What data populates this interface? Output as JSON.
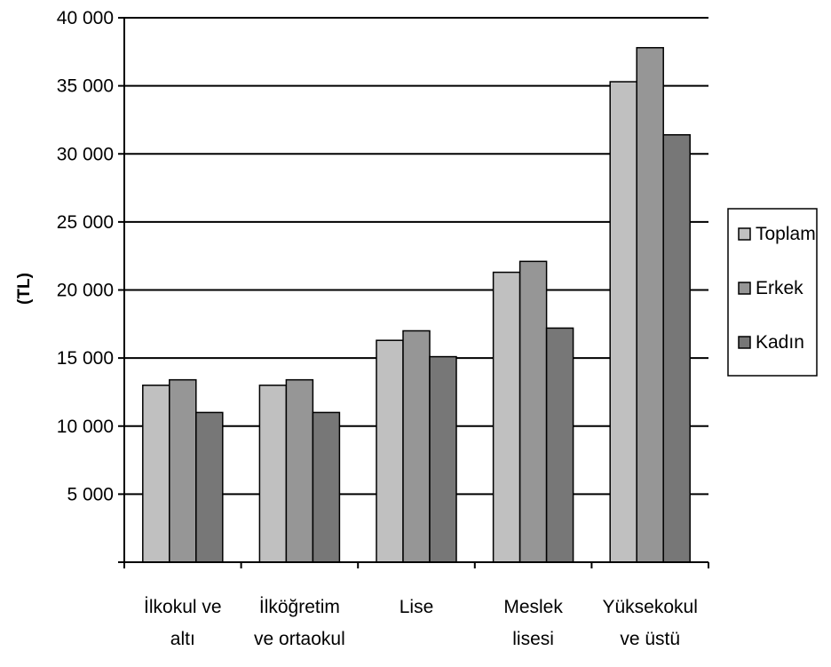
{
  "chart_data": {
    "type": "bar",
    "title": "",
    "xlabel": "",
    "ylabel": "(TL)",
    "ylim": [
      0,
      40000
    ],
    "y_ticks": [
      {
        "value": 0,
        "label": ""
      },
      {
        "value": 5000,
        "label": "5 000"
      },
      {
        "value": 10000,
        "label": "10 000"
      },
      {
        "value": 15000,
        "label": "15 000"
      },
      {
        "value": 20000,
        "label": "20 000"
      },
      {
        "value": 25000,
        "label": "25 000"
      },
      {
        "value": 30000,
        "label": "30 000"
      },
      {
        "value": 35000,
        "label": "35 000"
      },
      {
        "value": 40000,
        "label": "40 000"
      }
    ],
    "categories": [
      [
        "İlkokul ve",
        "altı"
      ],
      [
        "İlköğretim",
        "ve ortaokul"
      ],
      [
        "Lise"
      ],
      [
        "Meslek",
        "lisesi"
      ],
      [
        "Yüksekokul",
        "ve üstü"
      ]
    ],
    "series": [
      {
        "name": "Toplam",
        "color": "#c0c0c0",
        "values": [
          13000,
          13000,
          16300,
          21300,
          35300
        ]
      },
      {
        "name": "Erkek",
        "color": "#969696",
        "values": [
          13400,
          13400,
          17000,
          22100,
          37800
        ]
      },
      {
        "name": "Kadın",
        "color": "#777777",
        "values": [
          11000,
          11000,
          15100,
          17200,
          31400
        ]
      }
    ],
    "grid": true,
    "legend": "right"
  }
}
